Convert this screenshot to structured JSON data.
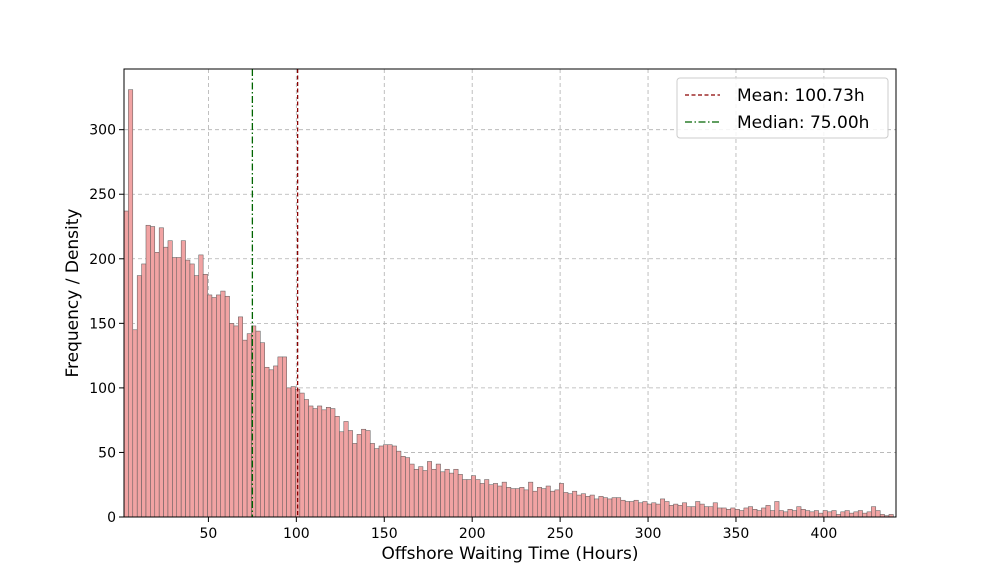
{
  "chart_data": {
    "type": "bar",
    "title": "",
    "xlabel": "Offshore Waiting Time (Hours)",
    "ylabel": "Frequency / Density",
    "xlim": [
      2,
      441
    ],
    "ylim": [
      0,
      347
    ],
    "x_ticks": [
      50,
      100,
      150,
      200,
      250,
      300,
      350,
      400
    ],
    "y_ticks": [
      0,
      50,
      100,
      150,
      200,
      250,
      300
    ],
    "grid": true,
    "legend_position": "top-right",
    "bin_start": 2,
    "bin_width": 2.5,
    "values": [
      237,
      331,
      145,
      187,
      196,
      226,
      225,
      205,
      224,
      209,
      214,
      201,
      201,
      214,
      199,
      196,
      187,
      203,
      188,
      172,
      170,
      172,
      175,
      171,
      150,
      148,
      155,
      137,
      142,
      148,
      144,
      135,
      116,
      114,
      117,
      124,
      124,
      100,
      101,
      99,
      96,
      91,
      86,
      84,
      86,
      83,
      85,
      84,
      78,
      66,
      74,
      67,
      57,
      64,
      68,
      67,
      57,
      53,
      55,
      56,
      56,
      55,
      51,
      47,
      46,
      41,
      37,
      39,
      36,
      43,
      37,
      41,
      35,
      37,
      34,
      37,
      33,
      29,
      29,
      32,
      29,
      26,
      29,
      25,
      26,
      24,
      27,
      23,
      22,
      22,
      23,
      21,
      27,
      20,
      23,
      22,
      24,
      20,
      21,
      26,
      19,
      18,
      20,
      17,
      18,
      16,
      17,
      14,
      16,
      15,
      14,
      15,
      15,
      13,
      12,
      12,
      13,
      11,
      12,
      10,
      11,
      10,
      14,
      12,
      9,
      10,
      9,
      11,
      8,
      8,
      12,
      10,
      8,
      8,
      11,
      7,
      7,
      6,
      7,
      6,
      5,
      7,
      8,
      6,
      5,
      7,
      9,
      5,
      12,
      5,
      4,
      6,
      5,
      8,
      6,
      5,
      4,
      5,
      3,
      5,
      4,
      5,
      2,
      4,
      5,
      3,
      4,
      5,
      3,
      4,
      8,
      5,
      2,
      1,
      2
    ],
    "reference_lines": [
      {
        "name": "Mean: 100.73h",
        "value": 100.73,
        "color": "#8b0000",
        "style": "dashed"
      },
      {
        "name": "Median: 75.00h",
        "value": 75.0,
        "color": "#006400",
        "style": "dashdot"
      }
    ]
  }
}
